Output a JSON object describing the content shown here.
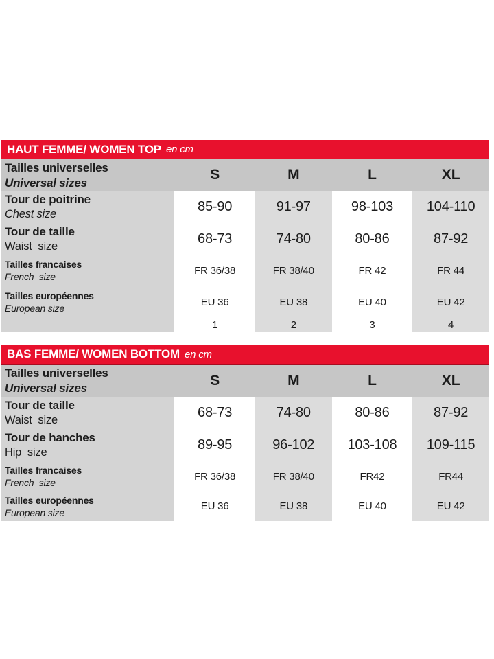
{
  "colors": {
    "accent_red": "#e8112d",
    "header_gray": "#c6c6c6",
    "label_gray": "#d4d4d4",
    "cell_gray": "#dcdcdc",
    "text_dark": "#1c1c1c"
  },
  "tables": [
    {
      "title": "HAUT FEMME/ WOMEN TOP",
      "unit": "en cm",
      "header": {
        "fr": "Tailles universelles",
        "en": "Universal sizes",
        "sizes": [
          "S",
          "M",
          "L",
          "XL"
        ]
      },
      "rows": [
        {
          "fr": "Tour de poitrine",
          "en": "Chest size",
          "values": [
            "85-90",
            "91-97",
            "98-103",
            "104-110"
          ]
        },
        {
          "fr": "Tour de taille",
          "en": "Waist  size",
          "values": [
            "68-73",
            "74-80",
            "80-86",
            "87-92"
          ]
        },
        {
          "fr": "Tailles francaises",
          "en": "French  size",
          "values": [
            "FR 36/38",
            "FR 38/40",
            "FR 42",
            "FR 44"
          ]
        },
        {
          "fr": "Tailles européennes",
          "en": "European size",
          "values": [
            "EU 36",
            "EU 38",
            "EU 40",
            "EU 42"
          ]
        }
      ],
      "numbers": [
        "1",
        "2",
        "3",
        "4"
      ]
    },
    {
      "title": "BAS FEMME/ WOMEN BOTTOM",
      "unit": "en cm",
      "header": {
        "fr": "Tailles universelles",
        "en": "Universal sizes",
        "sizes": [
          "S",
          "M",
          "L",
          "XL"
        ]
      },
      "rows": [
        {
          "fr": "Tour de taille",
          "en": "Waist  size",
          "values": [
            "68-73",
            "74-80",
            "80-86",
            "87-92"
          ]
        },
        {
          "fr": "Tour de hanches",
          "en": "Hip  size",
          "values": [
            "89-95",
            "96-102",
            "103-108",
            "109-115"
          ]
        },
        {
          "fr": "Tailles francaises",
          "en": "French  size",
          "values": [
            "FR 36/38",
            "FR 38/40",
            "FR42",
            "FR44"
          ]
        },
        {
          "fr": "Tailles européennes",
          "en": "European size",
          "values": [
            "EU 36",
            "EU 38",
            "EU 40",
            "EU 42"
          ]
        }
      ]
    }
  ]
}
